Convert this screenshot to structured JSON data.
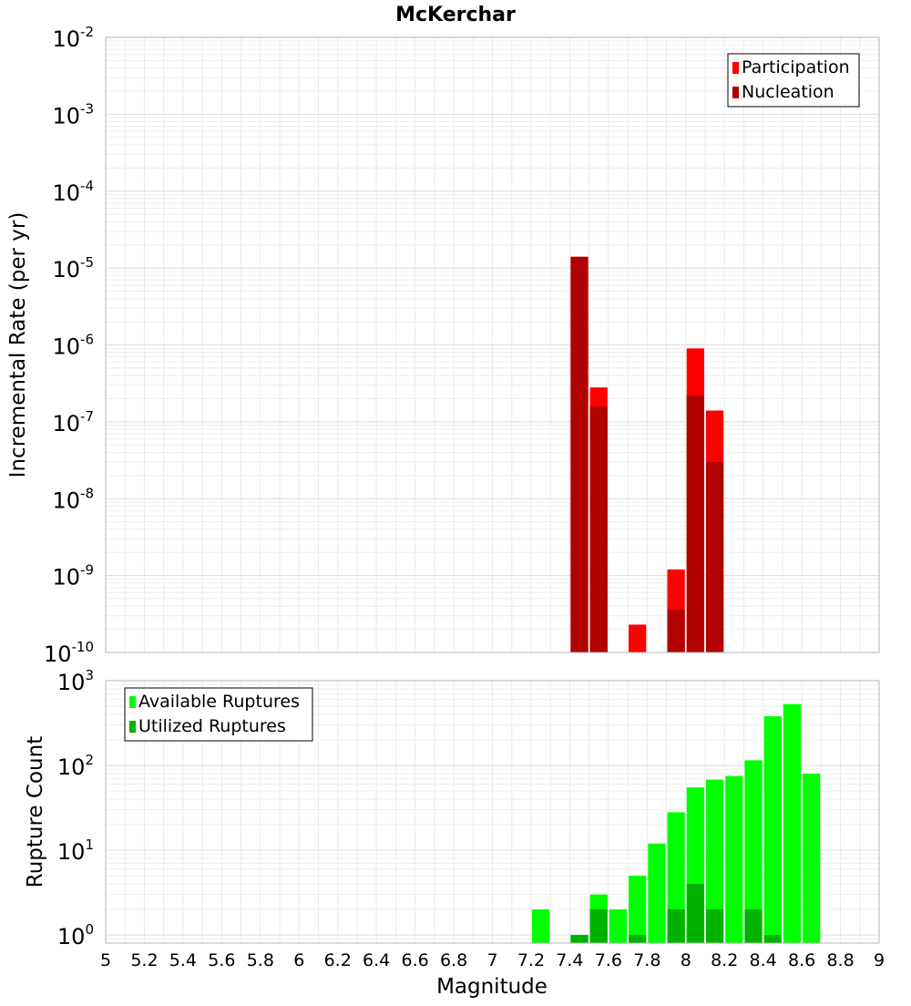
{
  "chart_data": [
    {
      "type": "bar",
      "title": "McKerchar",
      "xlabel": "",
      "ylabel": "Incremental Rate (per yr)",
      "xlim": [
        5,
        9
      ],
      "ylim": [
        1e-10,
        0.01
      ],
      "yscale": "log",
      "y_tick_exponents": [
        -2,
        -3,
        -4,
        -5,
        -6,
        -7,
        -8,
        -9,
        -10
      ],
      "grid": true,
      "legend": {
        "position": "top-right"
      },
      "series": [
        {
          "name": "Participation",
          "color": "#ff0000",
          "x": [
            7.45,
            7.55,
            7.75,
            7.95,
            8.05,
            8.15
          ],
          "values": [
            1.4e-05,
            2.8e-07,
            2.3e-10,
            1.2e-09,
            9e-07,
            1.4e-07
          ]
        },
        {
          "name": "Nucleation",
          "color": "#b00000",
          "x": [
            7.45,
            7.55,
            7.95,
            8.05,
            8.15
          ],
          "values": [
            1.4e-05,
            1.6e-07,
            3.6e-10,
            2.2e-07,
            3e-08
          ]
        }
      ]
    },
    {
      "type": "bar",
      "xlabel": "Magnitude",
      "ylabel": "Rupture Count",
      "xlim": [
        5,
        9
      ],
      "ylim": [
        0.8,
        1000
      ],
      "yscale": "log",
      "y_tick_exponents": [
        3,
        2,
        1,
        0
      ],
      "x_ticks": [
        "5",
        "5.2",
        "5.4",
        "5.6",
        "5.8",
        "6",
        "6.2",
        "6.4",
        "6.6",
        "6.8",
        "7",
        "7.2",
        "7.4",
        "7.6",
        "7.8",
        "8",
        "8.2",
        "8.4",
        "8.6",
        "8.8",
        "9"
      ],
      "grid": true,
      "legend": {
        "position": "top-left"
      },
      "series": [
        {
          "name": "Available Ruptures",
          "color": "#00ff00",
          "x": [
            7.25,
            7.45,
            7.55,
            7.65,
            7.75,
            7.85,
            7.95,
            8.05,
            8.15,
            8.25,
            8.35,
            8.45,
            8.55,
            8.65
          ],
          "values": [
            2,
            1,
            3,
            2,
            5,
            12,
            28,
            55,
            68,
            75,
            115,
            380,
            530,
            80
          ]
        },
        {
          "name": "Utilized Ruptures",
          "color": "#00b200",
          "x": [
            7.45,
            7.55,
            7.75,
            7.95,
            8.05,
            8.15,
            8.35,
            8.45
          ],
          "values": [
            1,
            2,
            1,
            2,
            4,
            2,
            2,
            1
          ]
        }
      ]
    }
  ]
}
